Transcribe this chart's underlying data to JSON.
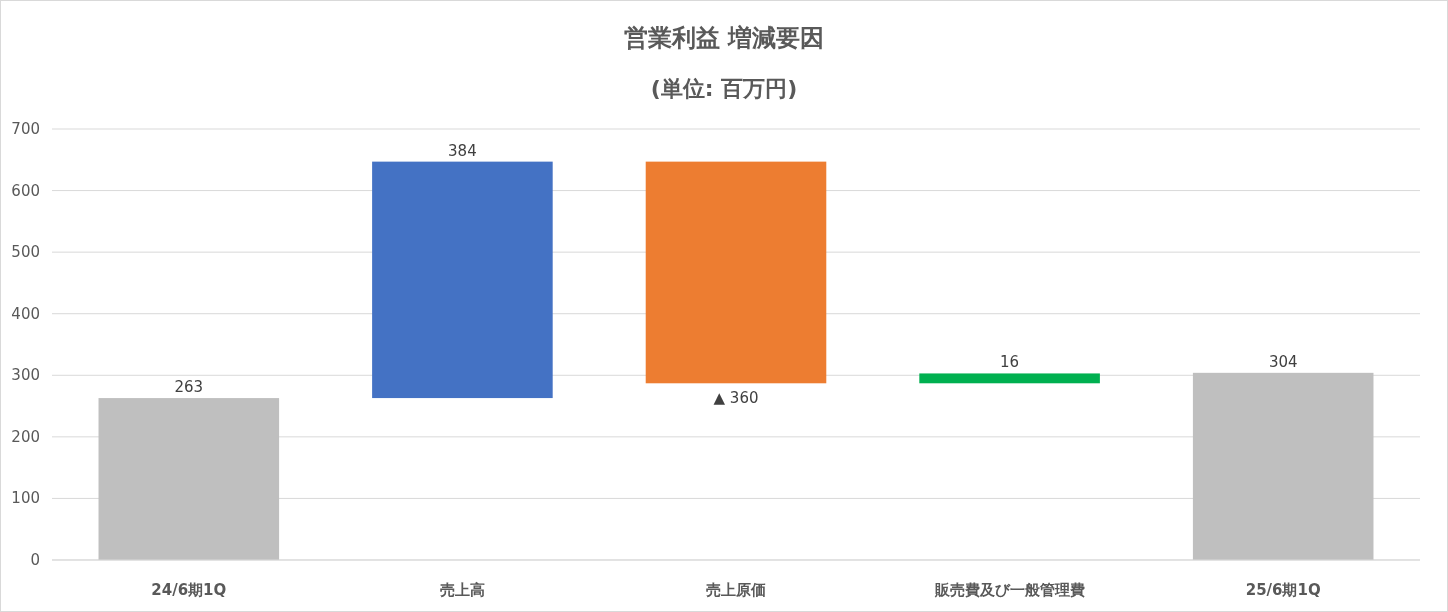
{
  "chart_data": {
    "type": "bar",
    "title": "営業利益 増減要因",
    "subtitle": "(単位: 百万円)",
    "categories": [
      "24/6期1Q",
      "売上高",
      "売上原価",
      "販売費及び一般管理費",
      "25/6期1Q"
    ],
    "values": [
      263,
      384,
      -360,
      16,
      304
    ],
    "base": [
      0,
      263,
      647,
      287,
      0
    ],
    "colors": [
      "#bfbfbf",
      "#4472c4",
      "#ed7d31",
      "#00b050",
      "#bfbfbf"
    ],
    "value_labels": [
      "263",
      "384",
      "▲ 360",
      "16",
      "304"
    ],
    "ylim": [
      0,
      700
    ],
    "yticks": [
      0,
      100,
      200,
      300,
      400,
      500,
      600,
      700
    ],
    "grid": "y"
  }
}
